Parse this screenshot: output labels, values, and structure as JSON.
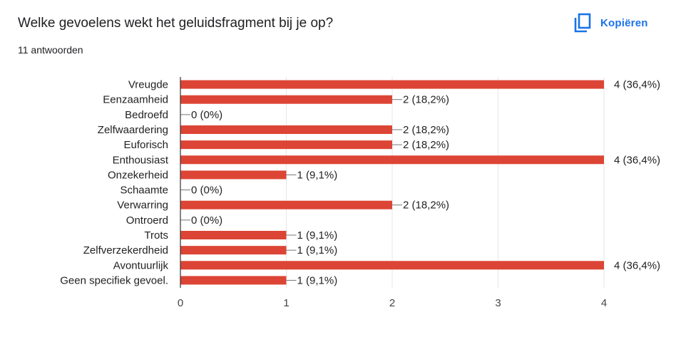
{
  "header": {
    "question": "Welke gevoelens wekt het geluidsfragment bij je op?",
    "responses": "11 antwoorden",
    "copy_label": "Kopiëren",
    "copy_icon": "copy-icon"
  },
  "colors": {
    "bar": "#dc4535",
    "accent": "#1a73e8",
    "grid": "#e6e6e6",
    "axis": "#333333"
  },
  "chart_data": {
    "type": "bar",
    "orientation": "horizontal",
    "title": "",
    "xlabel": "",
    "ylabel": "",
    "xlim": [
      0,
      4
    ],
    "xticks": [
      0,
      1,
      2,
      3,
      4
    ],
    "grid": true,
    "categories": [
      "Vreugde",
      "Eenzaamheid",
      "Bedroefd",
      "Zelfwaardering",
      "Euforisch",
      "Enthousiast",
      "Onzekerheid",
      "Schaamte",
      "Verwarring",
      "Ontroerd",
      "Trots",
      "Zelfverzekerdheid",
      "Avontuurlijk",
      "Geen specifiek gevoel."
    ],
    "values": [
      4,
      2,
      0,
      2,
      2,
      4,
      1,
      0,
      2,
      0,
      1,
      1,
      4,
      1
    ],
    "value_labels": [
      "4 (36,4%)",
      "2 (18,2%)",
      "0 (0%)",
      "2 (18,2%)",
      "2 (18,2%)",
      "4 (36,4%)",
      "1 (9,1%)",
      "0 (0%)",
      "2 (18,2%)",
      "0 (0%)",
      "1 (9,1%)",
      "1 (9,1%)",
      "4 (36,4%)",
      "1 (9,1%)"
    ]
  }
}
